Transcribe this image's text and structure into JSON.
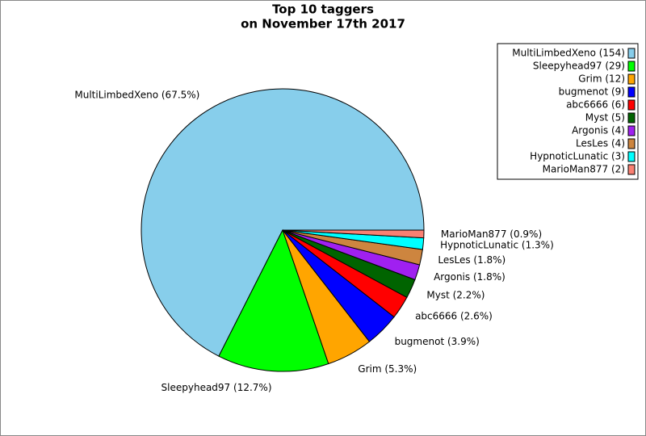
{
  "chart_data": {
    "type": "pie",
    "title": "Top 10 taggers",
    "subtitle": "on November 17th 2017",
    "categories": [
      "MultiLimbedXeno",
      "Sleepyhead97",
      "Grim",
      "bugmenot",
      "abc6666",
      "Myst",
      "Argonis",
      "LesLes",
      "HypnoticLunatic",
      "MarioMan877"
    ],
    "values": [
      154,
      29,
      12,
      9,
      6,
      5,
      4,
      4,
      3,
      2
    ],
    "colors": [
      "#87ceeb",
      "#00ff00",
      "#ffa500",
      "#0000ff",
      "#ff0000",
      "#006400",
      "#a020f0",
      "#cd853f",
      "#00ffff",
      "#fa8072"
    ],
    "slice_labels": [
      "MultiLimbedXeno (67.5%)",
      "Sleepyhead97 (12.7%)",
      "Grim (5.3%)",
      "bugmenot (3.9%)",
      "abc6666 (2.6%)",
      "Myst (2.2%)",
      "Argonis (1.8%)",
      "LesLes (1.8%)",
      "HypnoticLunatic (1.3%)",
      "MarioMan877 (0.9%)"
    ],
    "legend_labels": [
      "MultiLimbedXeno (154)",
      "Sleepyhead97 (29)",
      "Grim (12)",
      "bugmenot (9)",
      "abc6666 (6)",
      "Myst (5)",
      "Argonis (4)",
      "LesLes (4)",
      "HypnoticLunatic (3)",
      "MarioMan877 (2)"
    ],
    "legend": "upper right"
  }
}
